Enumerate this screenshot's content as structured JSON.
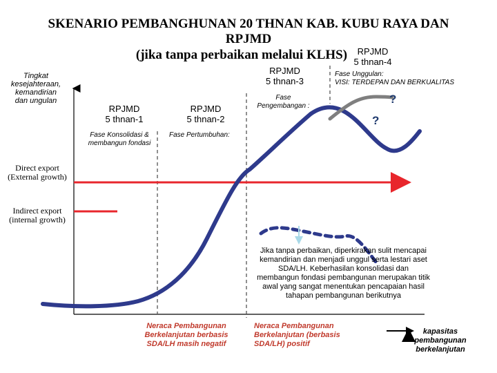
{
  "title": {
    "line1": "SKENARIO PEMBANGHUNAN 20 THNAN  KAB. KUBU RAYA DAN",
    "line2": "RPJMD",
    "line3": "(jika tanpa perbaikan melalui KLHS)"
  },
  "y_axis_label": [
    "Tingkat",
    "kesejahteraan,",
    "kemandirian",
    "dan ungulan"
  ],
  "periods": [
    {
      "label": [
        "RPJMD",
        "5 thnan-1"
      ]
    },
    {
      "label": [
        "RPJMD",
        "5 thnan-2"
      ]
    },
    {
      "label": [
        "RPJMD",
        "5 thnan-3"
      ]
    },
    {
      "label": [
        "RPJMD",
        "5 thnan-4"
      ]
    }
  ],
  "phases": {
    "konsolidasi": [
      "Fase Konsolidasi &",
      "membangun fondasi"
    ],
    "pertumbuhan": "Fase Pertumbuhan:",
    "pengembangan": [
      "Fase",
      "Pengembangan :"
    ],
    "unggulan": [
      "Fase Unggulan:",
      "VISI: TERDEPAN DAN BERKUALITAS"
    ]
  },
  "growth_lines": {
    "direct": [
      "Direct export",
      "(External growth)"
    ],
    "indirect": [
      "Indirect export",
      "(internal growth)"
    ]
  },
  "question_mark": "?",
  "note": [
    "Jika tanpa perbaikan, diperkirakan sulit mencapai",
    "kemandirian dan menjadi unggul serta lestari aset",
    "SDA/LH. Keberhasilan konsolidasi dan",
    "membangun fondasi pembangunan merupakan titik",
    "awal yang sangat menentukan pencapaian hasil",
    "tahapan pembangunan berikutnya"
  ],
  "neraca_negatif": [
    "Neraca Pembangunan",
    "Berkelanjutan berbasis",
    "SDA/LH masih negatif"
  ],
  "neraca_positif": [
    "Neraca Pembangunan",
    "Berkelanjutan (berbasis",
    "SDA/LH) positif"
  ],
  "capacity": [
    "kapasitas",
    "pembangunan",
    "berkelanjutan"
  ],
  "colors": {
    "curve": "#2e3a8c",
    "growth_line": "#e8262c",
    "gray_curve": "#7f7f7f",
    "down_arrow": "#a9d9e8",
    "question": "#1f3a6e"
  }
}
